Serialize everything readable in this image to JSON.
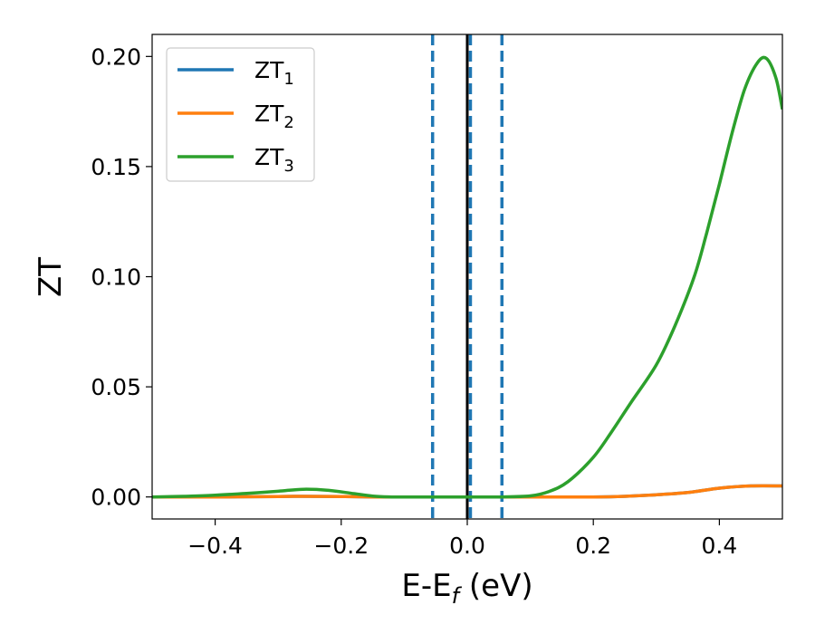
{
  "chart_data": {
    "type": "line",
    "xlabel": "E-E",
    "xlabel_sub": "f",
    "xlabel_unit": " (eV)",
    "ylabel": "ZT",
    "xlim": [
      -0.5,
      0.5
    ],
    "ylim": [
      -0.01,
      0.21
    ],
    "x_ticks": [
      -0.4,
      -0.2,
      0.0,
      0.2,
      0.4
    ],
    "x_tick_labels": [
      "−0.4",
      "−0.2",
      "0.0",
      "0.2",
      "0.4"
    ],
    "y_ticks": [
      0.0,
      0.05,
      0.1,
      0.15,
      0.2
    ],
    "y_tick_labels": [
      "0.00",
      "0.05",
      "0.10",
      "0.15",
      "0.20"
    ],
    "grid": false,
    "legend_position": "top-left",
    "series": [
      {
        "name": "ZT",
        "sub": "1",
        "color": "#1f77b4",
        "x": [
          -0.5,
          -0.4,
          -0.3,
          -0.26,
          -0.2,
          -0.15,
          -0.1,
          -0.05,
          0.0,
          0.05,
          0.1,
          0.15,
          0.2,
          0.25,
          0.3,
          0.35,
          0.4,
          0.45,
          0.5
        ],
        "y": [
          0.0,
          0.0,
          0.0002,
          0.0003,
          0.0002,
          0.0,
          0.0,
          0.0,
          0.0,
          0.0,
          0.0,
          0.0,
          0.0,
          0.0003,
          0.001,
          0.002,
          0.004,
          0.005,
          0.005
        ]
      },
      {
        "name": "ZT",
        "sub": "2",
        "color": "#ff7f0e",
        "x": [
          -0.5,
          -0.4,
          -0.3,
          -0.26,
          -0.2,
          -0.15,
          -0.1,
          -0.05,
          0.0,
          0.05,
          0.1,
          0.15,
          0.2,
          0.25,
          0.3,
          0.35,
          0.4,
          0.45,
          0.5
        ],
        "y": [
          0.0,
          0.0,
          0.0002,
          0.0003,
          0.0002,
          0.0,
          0.0,
          0.0,
          0.0,
          0.0,
          0.0,
          0.0,
          0.0,
          0.0003,
          0.001,
          0.002,
          0.004,
          0.005,
          0.005
        ]
      },
      {
        "name": "ZT",
        "sub": "3",
        "color": "#2ca02c",
        "x": [
          -0.5,
          -0.45,
          -0.4,
          -0.35,
          -0.3,
          -0.26,
          -0.22,
          -0.18,
          -0.15,
          -0.12,
          -0.1,
          -0.05,
          0.0,
          0.05,
          0.1,
          0.13,
          0.16,
          0.2,
          0.23,
          0.26,
          0.3,
          0.33,
          0.36,
          0.38,
          0.4,
          0.42,
          0.44,
          0.46,
          0.475,
          0.49,
          0.5
        ],
        "y": [
          0.0,
          0.0003,
          0.0008,
          0.0016,
          0.0026,
          0.0035,
          0.003,
          0.0015,
          0.0004,
          0.0,
          0.0,
          0.0,
          0.0,
          0.0,
          0.0005,
          0.0025,
          0.007,
          0.018,
          0.03,
          0.043,
          0.06,
          0.078,
          0.1,
          0.12,
          0.142,
          0.165,
          0.185,
          0.197,
          0.199,
          0.19,
          0.176
        ]
      }
    ],
    "vlines": [
      {
        "x": 0.0,
        "color": "#000000",
        "style": "solid"
      },
      {
        "x": -0.055,
        "color": "#1f77b4",
        "style": "dashed"
      },
      {
        "x": 0.005,
        "color": "#1f77b4",
        "style": "dashed"
      },
      {
        "x": 0.055,
        "color": "#1f77b4",
        "style": "dashed"
      }
    ]
  }
}
